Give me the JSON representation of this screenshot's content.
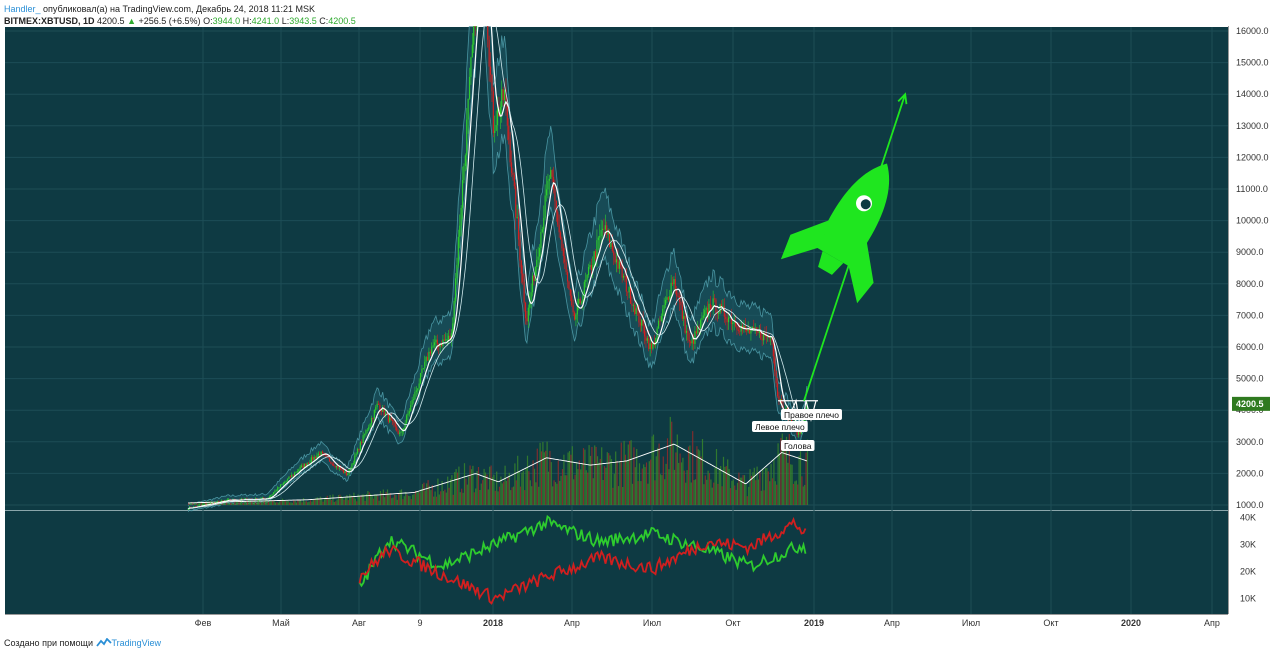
{
  "header": {
    "author": "Handler_",
    "published": " опубликовал(а) на TradingView.com, Декабрь 24, 2018 11:21 MSK",
    "symbol": "BITMEX:XBTUSD, 1D",
    "last": "4200.5",
    "change_arrow": "▲",
    "change": "+256.5 (+6.5%)",
    "o_label": "O:",
    "o": "3944.0",
    "h_label": "H:",
    "h": "4241.0",
    "l_label": "L:",
    "l": "3943.5",
    "c_label": "C:",
    "c": "4200.5"
  },
  "footer": {
    "text": "Создано при помощи",
    "brand": "TradingView",
    "logo_icon": "tradingview-logo-icon"
  },
  "colors": {
    "bg": "#0e3a43",
    "up": "#2ecc2e",
    "down": "#d11f1f",
    "ma": "#ffffff",
    "band": "#5fb6c4",
    "rocket": "#1fe61f",
    "price_tag": "#2f7a1f"
  },
  "chart_data": {
    "type": "candlestick",
    "x_ticks": [
      "Фев",
      "Май",
      "Авг",
      "9",
      "2018",
      "Апр",
      "Июл",
      "Окт",
      "2019",
      "Апр",
      "Июл",
      "Окт",
      "2020",
      "Апр"
    ],
    "y_ticks": [
      "16000.0",
      "15000.0",
      "14000.0",
      "13000.0",
      "12000.0",
      "11000.0",
      "10000.0",
      "9000.0",
      "8000.0",
      "7000.0",
      "6000.0",
      "5000.0",
      "4000.0",
      "3000.0",
      "2000.0",
      "1000.0"
    ],
    "ylim": [
      1000,
      16000
    ],
    "last_price_label": "4200.5",
    "price_path": [
      [
        "2017-01-15",
        900
      ],
      [
        "2017-03-01",
        1150
      ],
      [
        "2017-04-15",
        1200
      ],
      [
        "2017-05-20",
        2100
      ],
      [
        "2017-06-15",
        2650
      ],
      [
        "2017-07-16",
        1950
      ],
      [
        "2017-08-20",
        4200
      ],
      [
        "2017-09-15",
        3200
      ],
      [
        "2017-10-20",
        6000
      ],
      [
        "2017-11-12",
        6300
      ],
      [
        "2017-12-17",
        19500
      ],
      [
        "2017-12-30",
        13000
      ],
      [
        "2018-01-12",
        14000
      ],
      [
        "2018-02-06",
        6800
      ],
      [
        "2018-03-05",
        11500
      ],
      [
        "2018-04-01",
        6800
      ],
      [
        "2018-05-05",
        9800
      ],
      [
        "2018-06-29",
        5900
      ],
      [
        "2018-07-24",
        8200
      ],
      [
        "2018-08-12",
        6000
      ],
      [
        "2018-09-05",
        7400
      ],
      [
        "2018-10-15",
        6500
      ],
      [
        "2018-11-14",
        6300
      ],
      [
        "2018-11-20",
        4500
      ],
      [
        "2018-12-15",
        3200
      ],
      [
        "2018-12-24",
        4200.5
      ]
    ],
    "volume_ma_path": [
      [
        "2017-01-15",
        0.02
      ],
      [
        "2017-06-01",
        0.05
      ],
      [
        "2017-10-01",
        0.12
      ],
      [
        "2017-12-10",
        0.3
      ],
      [
        "2018-01-05",
        0.22
      ],
      [
        "2018-03-01",
        0.45
      ],
      [
        "2018-04-20",
        0.38
      ],
      [
        "2018-06-01",
        0.42
      ],
      [
        "2018-07-25",
        0.58
      ],
      [
        "2018-10-15",
        0.2
      ],
      [
        "2018-11-25",
        0.5
      ],
      [
        "2018-12-24",
        0.42
      ]
    ],
    "annotations": {
      "left_shoulder": "Левое плечо",
      "head": "Голова",
      "right_shoulder": "Правое плечо"
    },
    "projection_path": [
      [
        "2018-12-24",
        4300
      ],
      [
        "2019-04-05",
        14000
      ]
    ],
    "indicator": {
      "y_ticks": [
        "40K",
        "30K",
        "20K",
        "10K"
      ],
      "ylim": [
        5000,
        42000
      ],
      "series": [
        {
          "color": "green",
          "path": [
            [
              "2017-07-30",
              14000
            ],
            [
              "2017-09-01",
              32000
            ],
            [
              "2017-11-01",
              22000
            ],
            [
              "2018-01-01",
              30000
            ],
            [
              "2018-03-01",
              38000
            ],
            [
              "2018-05-01",
              31000
            ],
            [
              "2018-07-01",
              34000
            ],
            [
              "2018-09-01",
              28000
            ],
            [
              "2018-10-20",
              22000
            ],
            [
              "2018-12-20",
              30000
            ],
            [
              "2018-12-24",
              27000
            ]
          ]
        },
        {
          "color": "red",
          "path": [
            [
              "2017-07-30",
              18000
            ],
            [
              "2017-09-01",
              28000
            ],
            [
              "2017-11-01",
              19000
            ],
            [
              "2018-01-01",
              10000
            ],
            [
              "2018-03-01",
              18000
            ],
            [
              "2018-05-01",
              25000
            ],
            [
              "2018-07-01",
              21000
            ],
            [
              "2018-09-01",
              31000
            ],
            [
              "2018-10-20",
              29000
            ],
            [
              "2018-12-10",
              38000
            ],
            [
              "2018-12-24",
              33000
            ]
          ]
        }
      ]
    }
  }
}
